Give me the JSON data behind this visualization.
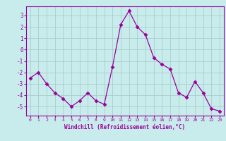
{
  "x": [
    0,
    1,
    2,
    3,
    4,
    5,
    6,
    7,
    8,
    9,
    10,
    11,
    12,
    13,
    14,
    15,
    16,
    17,
    18,
    19,
    20,
    21,
    22,
    23
  ],
  "y": [
    -2.5,
    -2.0,
    -3.0,
    -3.8,
    -4.3,
    -5.0,
    -4.5,
    -3.8,
    -4.5,
    -4.8,
    -1.5,
    2.2,
    3.4,
    2.0,
    1.3,
    -0.7,
    -1.3,
    -1.7,
    -3.8,
    -4.2,
    -2.8,
    -3.8,
    -5.2,
    -5.4
  ],
  "line_color": "#990099",
  "marker": "D",
  "markersize": 2.5,
  "linewidth": 0.9,
  "bg_color": "#c8ecec",
  "grid_color": "#aacccc",
  "xlabel": "Windchill (Refroidissement éolien,°C)",
  "xlabel_color": "#990099",
  "tick_color": "#990099",
  "axis_color": "#990099",
  "ylim": [
    -5.8,
    3.8
  ],
  "yticks": [
    -5,
    -4,
    -3,
    -2,
    -1,
    0,
    1,
    2,
    3
  ],
  "xlim": [
    -0.5,
    23.5
  ],
  "xticks": [
    0,
    1,
    2,
    3,
    4,
    5,
    6,
    7,
    8,
    9,
    10,
    11,
    12,
    13,
    14,
    15,
    16,
    17,
    18,
    19,
    20,
    21,
    22,
    23
  ]
}
